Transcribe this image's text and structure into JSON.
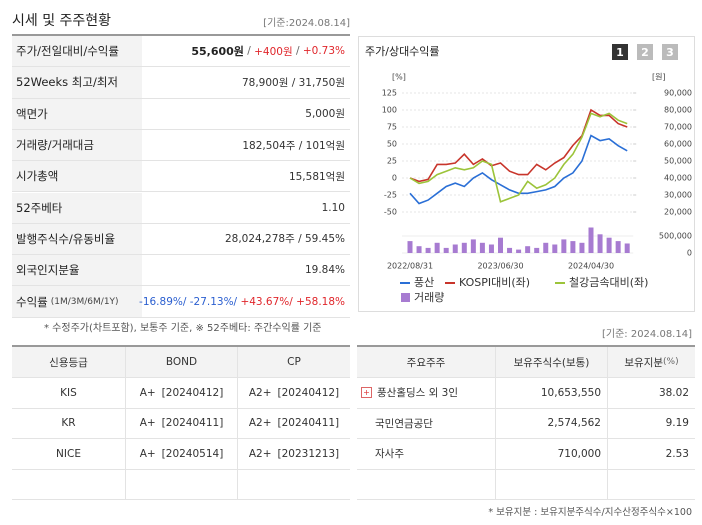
{
  "header": {
    "title": "시세 및 주주현황",
    "date": "[기준:2024.08.14]"
  },
  "summary": {
    "rows": [
      {
        "label": "주가/전일대비/수익률",
        "parts": [
          {
            "text": "55,600원",
            "color": "#222"
          },
          {
            "text": " / ",
            "color": "#666"
          },
          {
            "text": "+400원",
            "color": "#e0262b"
          },
          {
            "text": " / ",
            "color": "#666"
          },
          {
            "text": "+0.73%",
            "color": "#e0262b"
          }
        ]
      },
      {
        "label": "52Weeks 최고/최저",
        "parts": [
          {
            "text": "78,900원 / 31,750원",
            "color": "#333"
          }
        ]
      },
      {
        "label": "액면가",
        "parts": [
          {
            "text": "5,000원",
            "color": "#333"
          }
        ]
      },
      {
        "label": "거래량/거래대금",
        "parts": [
          {
            "text": "182,504주 / 101억원",
            "color": "#333"
          }
        ]
      },
      {
        "label": "시가총액",
        "parts": [
          {
            "text": "15,581억원",
            "color": "#333"
          }
        ]
      },
      {
        "label": "52주베타",
        "parts": [
          {
            "text": "1.10",
            "color": "#333"
          }
        ]
      },
      {
        "label": "발행주식수/유동비율",
        "parts": [
          {
            "text": "28,024,278주 / 59.45%",
            "color": "#333"
          }
        ]
      },
      {
        "label": "외국인지분율",
        "parts": [
          {
            "text": "19.84%",
            "color": "#333"
          }
        ]
      },
      {
        "label": "수익률",
        "sublabel": "(1M/3M/6M/1Y)",
        "parts": [
          {
            "text": "-16.89%/ ",
            "color": "#2b5fd0"
          },
          {
            "text": "-27.13%/ ",
            "color": "#2b5fd0"
          },
          {
            "text": "+43.67%/ ",
            "color": "#e0262b"
          },
          {
            "text": "+58.18%",
            "color": "#e0262b"
          }
        ]
      }
    ],
    "note": "* 수정주가(차트포함), 보통주 기준, ※ 52주베타: 주간수익률 기준"
  },
  "chart_data": {
    "type": "line",
    "title": "주가/상대수익률",
    "buttons": [
      "1",
      "2",
      "3"
    ],
    "ylabel": "[%]",
    "y2label": "[원]",
    "categories": [
      "2022/08/31",
      null,
      null,
      null,
      null,
      null,
      null,
      null,
      null,
      null,
      "2023/06/30",
      null,
      null,
      null,
      null,
      null,
      null,
      null,
      null,
      null,
      "2024/04/30",
      null,
      null,
      null,
      null
    ],
    "ylim": [
      -50,
      125
    ],
    "yticks": [
      -50,
      -25,
      0,
      25,
      50,
      75,
      100,
      125
    ],
    "y2lim": [
      20000,
      90000
    ],
    "y2ticks": [
      {
        "value": 20000,
        "label": "20,000"
      },
      {
        "value": 30000,
        "label": "30,000"
      },
      {
        "value": 40000,
        "label": "40,000"
      },
      {
        "value": 50000,
        "label": "50,000"
      },
      {
        "value": 60000,
        "label": "60,000"
      },
      {
        "value": 70000,
        "label": "70,000"
      },
      {
        "value": 80000,
        "label": "80,000"
      },
      {
        "value": 90000,
        "label": "90,000"
      }
    ],
    "grid": true,
    "series": [
      {
        "name": "풍산",
        "color": "#2a6fd6",
        "axis": "y2",
        "values": [
          31000,
          25000,
          27000,
          31000,
          35000,
          37000,
          35000,
          40000,
          43000,
          39000,
          36000,
          33000,
          31000,
          31000,
          32000,
          33000,
          35000,
          40000,
          43000,
          50000,
          65000,
          62000,
          63000,
          59000,
          56000
        ]
      },
      {
        "name": "KOSPI대비(좌)",
        "color": "#c8352b",
        "values": [
          0,
          -5,
          -2,
          20,
          20,
          22,
          35,
          20,
          28,
          18,
          22,
          10,
          5,
          5,
          20,
          12,
          22,
          30,
          48,
          62,
          100,
          92,
          92,
          80,
          75
        ]
      },
      {
        "name": "철강금속대비(좌)",
        "color": "#9cc43a",
        "values": [
          0,
          -8,
          -5,
          5,
          10,
          15,
          12,
          15,
          25,
          20,
          -35,
          -30,
          -25,
          -5,
          -15,
          -10,
          0,
          20,
          35,
          60,
          95,
          90,
          95,
          85,
          80
        ]
      }
    ],
    "volume": {
      "name": "거래량",
      "color": "#a77bd1",
      "ylim": [
        0,
        500000
      ],
      "yticks": [
        0,
        {
          "value": 500000,
          "label": "500,000"
        }
      ],
      "values": [
        350000,
        200000,
        150000,
        300000,
        150000,
        250000,
        300000,
        400000,
        300000,
        250000,
        450000,
        150000,
        100000,
        200000,
        150000,
        300000,
        250000,
        400000,
        350000,
        300000,
        750000,
        550000,
        450000,
        350000,
        280000
      ]
    }
  },
  "credit": {
    "headers": [
      "신용등급",
      "BOND",
      "CP"
    ],
    "rows": [
      [
        "KIS",
        [
          "A+",
          "[20240412]"
        ],
        [
          "A2+",
          "[20240412]"
        ]
      ],
      [
        "KR",
        [
          "A+",
          "[20240411]"
        ],
        [
          "A2+",
          "[20240411]"
        ]
      ],
      [
        "NICE",
        [
          "A+",
          "[20240514]"
        ],
        [
          "A2+",
          "[20231213]"
        ]
      ]
    ]
  },
  "holders": {
    "date": "[기준: 2024.08.14]",
    "headers": [
      "주요주주",
      "보유주식수(보통)",
      "보유지분"
    ],
    "unit": "(%)",
    "rows": [
      [
        "풍산홀딩스 외 3인",
        "10,653,550",
        "38.02"
      ],
      [
        "국민연금공단",
        "2,574,562",
        "9.19"
      ],
      [
        "자사주",
        "710,000",
        "2.53"
      ]
    ],
    "footnote": "* 보유지분 : 보유지분주식수/지수산정주식수×100"
  }
}
